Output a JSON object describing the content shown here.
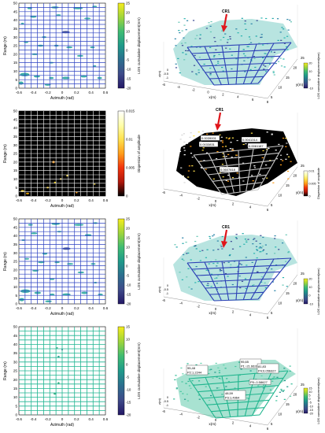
{
  "chart_data": [
    {
      "type": "heatmap",
      "xlabel": "Azimuth (rad)",
      "ylabel": "Range (m)",
      "x_ticks": [
        "-0.6",
        "-0.4",
        "-0.2",
        "0",
        "0.2",
        "0.4",
        "0.6"
      ],
      "y_ticks": [
        "0",
        "5",
        "10",
        "15",
        "20",
        "25",
        "30",
        "35",
        "40",
        "45",
        "50"
      ],
      "xlim": [
        -0.6,
        0.6
      ],
      "ylim": [
        0,
        50
      ],
      "grid": true,
      "colorbar": {
        "label": "LOS cumulative displacement(mm)",
        "ticks": [
          "25",
          "20",
          "15",
          "10",
          "5",
          "0",
          "-5",
          "-10",
          "-15",
          "-20"
        ],
        "range": [
          -20,
          25
        ]
      }
    },
    {
      "type": "scatter",
      "annotation": "CR1",
      "xlabel": "x(m)",
      "ylabel": "y(m)",
      "zlabel": "z(m)",
      "x_ticks": [
        "-6",
        "-4",
        "-2",
        "0",
        "2",
        "4",
        "6",
        "8"
      ],
      "y_ticks": [
        "5",
        "10",
        "15",
        "20",
        "25"
      ],
      "z_ticks": [
        "0",
        "-0.5",
        "-1"
      ],
      "colorbar": {
        "label": "LOS cumulative displacement(mm)",
        "ticks": [
          "20",
          "10",
          "0",
          "-10"
        ]
      }
    },
    {
      "type": "heatmap",
      "xlabel": "Azimuth (rad)",
      "ylabel": "Range (m)",
      "x_ticks": [
        "-0.6",
        "-0.4",
        "-0.2",
        "0",
        "0.2",
        "0.4",
        "0.6"
      ],
      "y_ticks": [
        "0",
        "5",
        "10",
        "15",
        "20",
        "25",
        "30",
        "35",
        "40",
        "45",
        "50"
      ],
      "xlim": [
        -0.6,
        0.6
      ],
      "ylim": [
        0,
        50
      ],
      "grid": true,
      "colorbar": {
        "label": "Dispersion of amplitude",
        "ticks": [
          "0.015",
          "0.01",
          "0.005",
          "0"
        ],
        "range": [
          0,
          0.015
        ]
      }
    },
    {
      "type": "scatter",
      "annotation": "CR1",
      "xlabel": "x(m)",
      "ylabel": "y(m)",
      "x_ticks": [
        "-6",
        "-4",
        "-2",
        "0",
        "2",
        "4",
        "6"
      ],
      "y_ticks": [
        "5",
        "10",
        "15",
        "20",
        "25"
      ],
      "labels": [
        "0.0039001",
        "0.0033831",
        "0.0061187",
        "0.0607818",
        "0.0041314"
      ],
      "colorbar": {
        "label": "Dispersion of amplitude",
        "ticks": [
          "0.01",
          "0.005",
          "0"
        ]
      }
    },
    {
      "type": "heatmap",
      "xlabel": "Azimuth (rad)",
      "ylabel": "Range (m)",
      "x_ticks": [
        "-0.6",
        "-0.4",
        "-0.2",
        "0",
        "0.2",
        "0.4",
        "0.6"
      ],
      "y_ticks": [
        "0",
        "5",
        "10",
        "15",
        "20",
        "25",
        "30",
        "35",
        "40",
        "45",
        "50"
      ],
      "xlim": [
        -0.6,
        0.6
      ],
      "ylim": [
        0,
        50
      ],
      "grid": true,
      "colorbar": {
        "label": "LOS cumulative displacement(mm)",
        "ticks": [
          "25",
          "20",
          "15",
          "10",
          "5",
          "0",
          "-5",
          "-10",
          "-15",
          "-20"
        ],
        "range": [
          -20,
          25
        ]
      }
    },
    {
      "type": "scatter",
      "annotation": "CR1",
      "xlabel": "x(m)",
      "ylabel": "y(m)",
      "zlabel": "z(m)",
      "x_ticks": [
        "-6",
        "-4",
        "-2",
        "0",
        "2",
        "4",
        "6"
      ],
      "y_ticks": [
        "5",
        "10",
        "15",
        "20",
        "25"
      ],
      "z_ticks": [
        "0",
        "-0.5",
        "-1"
      ],
      "colorbar": {
        "label": "LOS cumulative displacement(mm)",
        "ticks": [
          "20",
          "10",
          "0",
          "-10"
        ]
      }
    },
    {
      "type": "heatmap",
      "xlabel": "Azimuth (rad)",
      "ylabel": "Range (m)",
      "x_ticks": [
        "-0.6",
        "-0.4",
        "-0.2",
        "0",
        "0.2",
        "0.4",
        "0.6"
      ],
      "y_ticks": [
        "0",
        "5",
        "10",
        "15",
        "20",
        "25",
        "30",
        "35",
        "40",
        "45",
        "50"
      ],
      "xlim": [
        -0.6,
        0.6
      ],
      "ylim": [
        0,
        50
      ],
      "grid": true,
      "colorbar": {
        "label": "LOS cumulative displacement(mm)",
        "ticks": [
          "15",
          "10",
          "5",
          "0",
          "-5",
          "-10",
          "-15",
          "-20"
        ],
        "range": [
          -20,
          15
        ]
      }
    },
    {
      "type": "scatter",
      "xlabel": "x(m)",
      "ylabel": "y(m)",
      "zlabel": "z(m)",
      "x_ticks": [
        "-6",
        "-4",
        "-2",
        "0",
        "2",
        "4",
        "6"
      ],
      "y_ticks": [
        "5",
        "10",
        "15",
        "20",
        "25"
      ],
      "z_ticks": [
        "0",
        "-0.5",
        "-1"
      ],
      "points": [
        {
          "label": "95,65",
          "detail": "P1:-21.6628"
        },
        {
          "label": "95,48",
          "detail": "P2:1.2244"
        },
        {
          "label": "81,83",
          "detail": "P4:0.056327"
        },
        {
          "label": "48,59",
          "detail": "P3:1.4964"
        },
        {
          "label": "",
          "detail": "P5:-0.58627"
        }
      ],
      "colorbar": {
        "label": "LOS cumulative displacement(mm)",
        "ticks": [
          "15",
          "10",
          "5",
          "0",
          "-5",
          "-10",
          "-15",
          "-20"
        ]
      }
    }
  ]
}
